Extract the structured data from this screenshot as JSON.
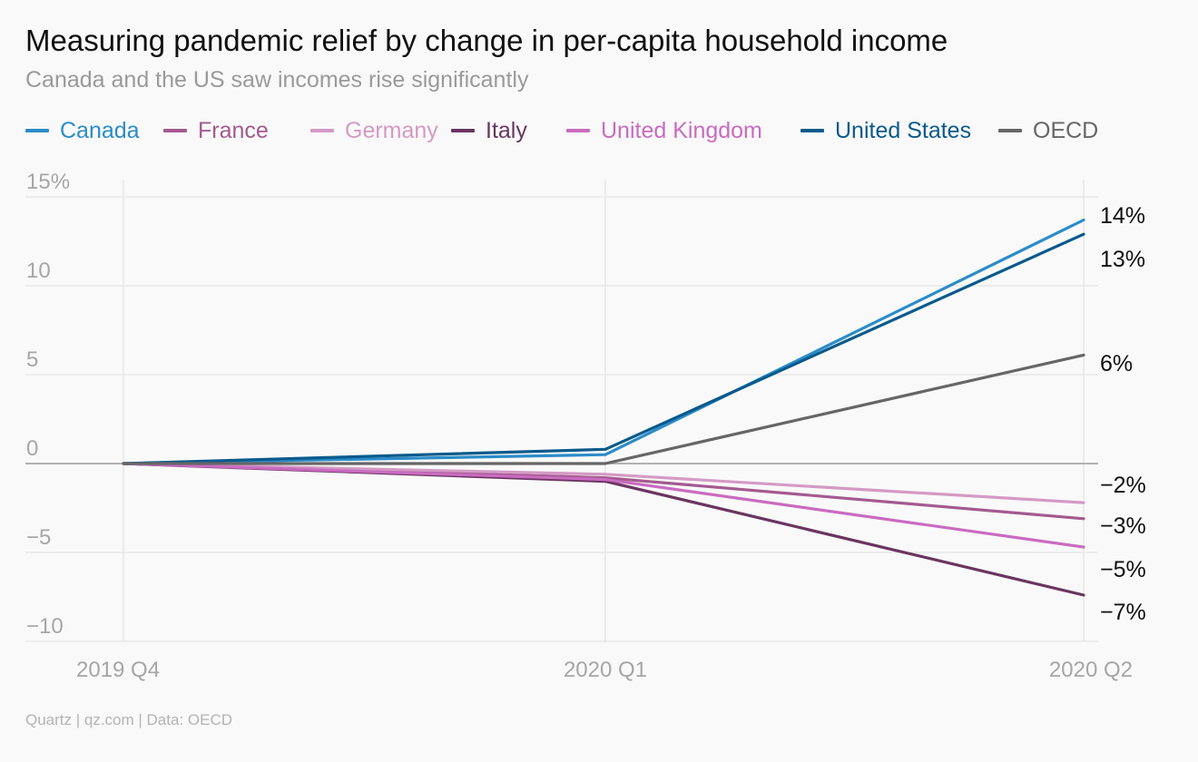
{
  "header": {
    "title": "Measuring pandemic relief by change in per-capita household income",
    "subtitle": "Canada and the US saw incomes rise significantly"
  },
  "footer": {
    "source": "Quartz | qz.com | Data: OECD"
  },
  "colors": {
    "axis_text": "#a6a6a6",
    "grid": "#e4e4e4",
    "zero_line": "#9a9a9a",
    "end_label": "#111111"
  },
  "chart_data": {
    "type": "line",
    "title": "Measuring pandemic relief by change in per-capita household income",
    "subtitle": "Canada and the US saw incomes rise significantly",
    "x": [
      "2019 Q4",
      "2020 Q1",
      "2020 Q2"
    ],
    "ylim": [
      -10,
      15
    ],
    "yticks": [
      {
        "value": 15,
        "label": "15%"
      },
      {
        "value": 10,
        "label": "10"
      },
      {
        "value": 5,
        "label": "5"
      },
      {
        "value": 0,
        "label": "0"
      },
      {
        "value": -5,
        "label": "−5"
      },
      {
        "value": -10,
        "label": "−10"
      }
    ],
    "grid": true,
    "legend_position": "top-left",
    "series": [
      {
        "name": "Canada",
        "color": "#2b8cc8",
        "values": [
          0,
          0.5,
          13.7
        ]
      },
      {
        "name": "France",
        "color": "#a35a8f",
        "values": [
          0,
          -0.8,
          -3.1
        ]
      },
      {
        "name": "Germany",
        "color": "#d49ac5",
        "values": [
          0,
          -0.6,
          -2.2
        ]
      },
      {
        "name": "Italy",
        "color": "#6a3560",
        "values": [
          0,
          -1.0,
          -7.4
        ]
      },
      {
        "name": "United Kingdom",
        "color": "#c96bc0",
        "values": [
          0,
          -0.9,
          -4.7
        ]
      },
      {
        "name": "United States",
        "color": "#0a5a8c",
        "values": [
          0,
          0.8,
          12.9
        ]
      },
      {
        "name": "OECD",
        "color": "#666666",
        "values": [
          0,
          0.0,
          6.1
        ]
      }
    ],
    "end_labels": [
      {
        "text": "14%",
        "value": 13.7
      },
      {
        "text": "13%",
        "value": 12.9
      },
      {
        "text": "6%",
        "value": 6.1
      },
      {
        "text": "−2%",
        "value": -2.2
      },
      {
        "text": "−3%",
        "value": -3.1
      },
      {
        "text": "−5%",
        "value": -4.7
      },
      {
        "text": "−7%",
        "value": -7.4
      }
    ]
  }
}
